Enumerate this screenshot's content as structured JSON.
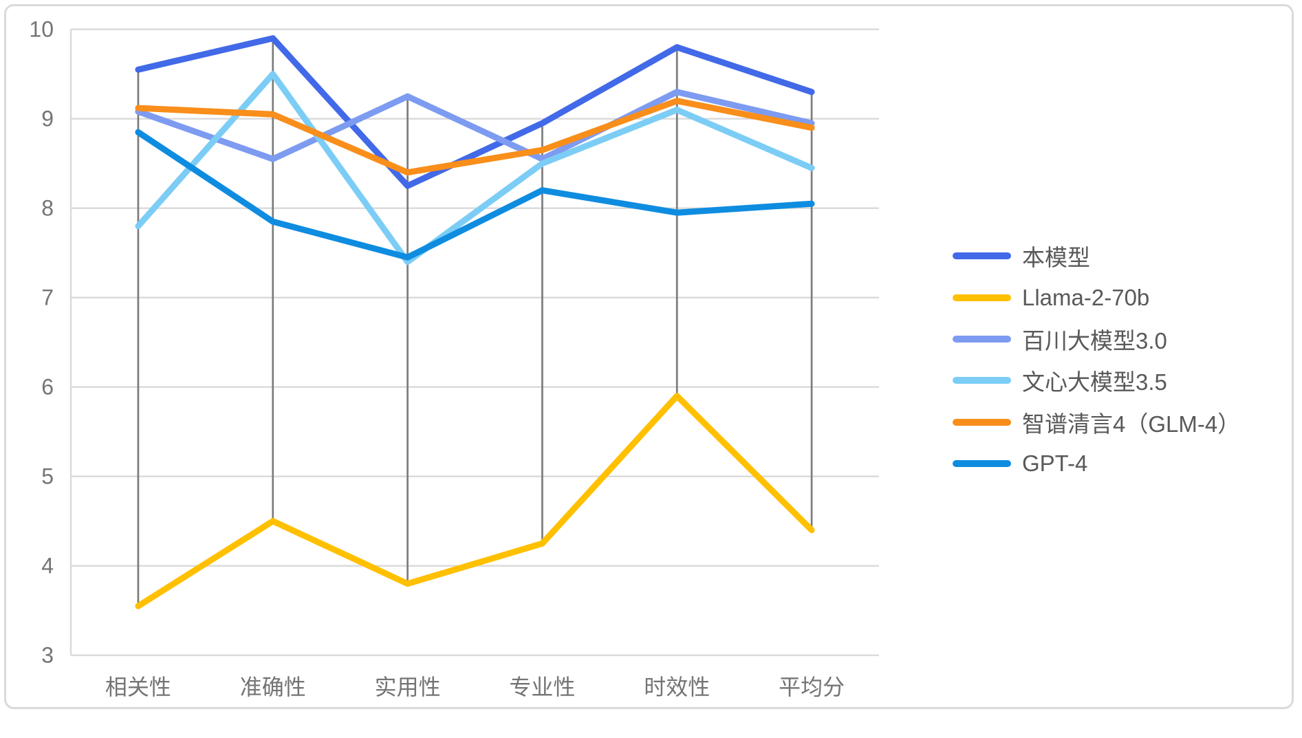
{
  "chart_data": {
    "type": "line",
    "title": "",
    "xlabel": "",
    "ylabel": "",
    "categories": [
      "相关性",
      "准确性",
      "实用性",
      "专业性",
      "时效性",
      "平均分"
    ],
    "series": [
      {
        "name": "本模型",
        "color": "#4169E8",
        "values": [
          9.55,
          9.9,
          8.25,
          8.95,
          9.8,
          9.3
        ]
      },
      {
        "name": "Llama-2-70b",
        "color": "#FFC000",
        "values": [
          3.55,
          4.5,
          3.8,
          4.25,
          5.9,
          4.4
        ]
      },
      {
        "name": "百川大模型3.0",
        "color": "#7D9BF0",
        "values": [
          9.08,
          8.55,
          9.25,
          8.55,
          9.3,
          8.95
        ]
      },
      {
        "name": "文心大模型3.5",
        "color": "#7CCDF5",
        "values": [
          7.8,
          9.5,
          7.4,
          8.5,
          9.1,
          8.45
        ]
      },
      {
        "name": "智谱清言4（GLM-4）",
        "color": "#F98E1B",
        "values": [
          9.12,
          9.05,
          8.4,
          8.65,
          9.2,
          8.9
        ]
      },
      {
        "name": "GPT-4",
        "color": "#0E8CE0",
        "values": [
          8.85,
          7.85,
          7.45,
          8.2,
          7.95,
          8.05
        ]
      }
    ],
    "ylim": [
      3,
      10
    ],
    "yticks": [
      "3",
      "4",
      "5",
      "6",
      "7",
      "8",
      "9",
      "10"
    ],
    "grid": true,
    "high_low_lines": true,
    "legend_position": "right"
  },
  "style": {
    "background": "#FFFFFF",
    "frame_border_color": "#DADADA",
    "grid_color": "#D9D9D9",
    "plot_edge_color": "#D9D9D9",
    "high_low_line_color": "#7C7C7C",
    "axis_text_color": "#747474",
    "legend_text_color": "#595959"
  }
}
